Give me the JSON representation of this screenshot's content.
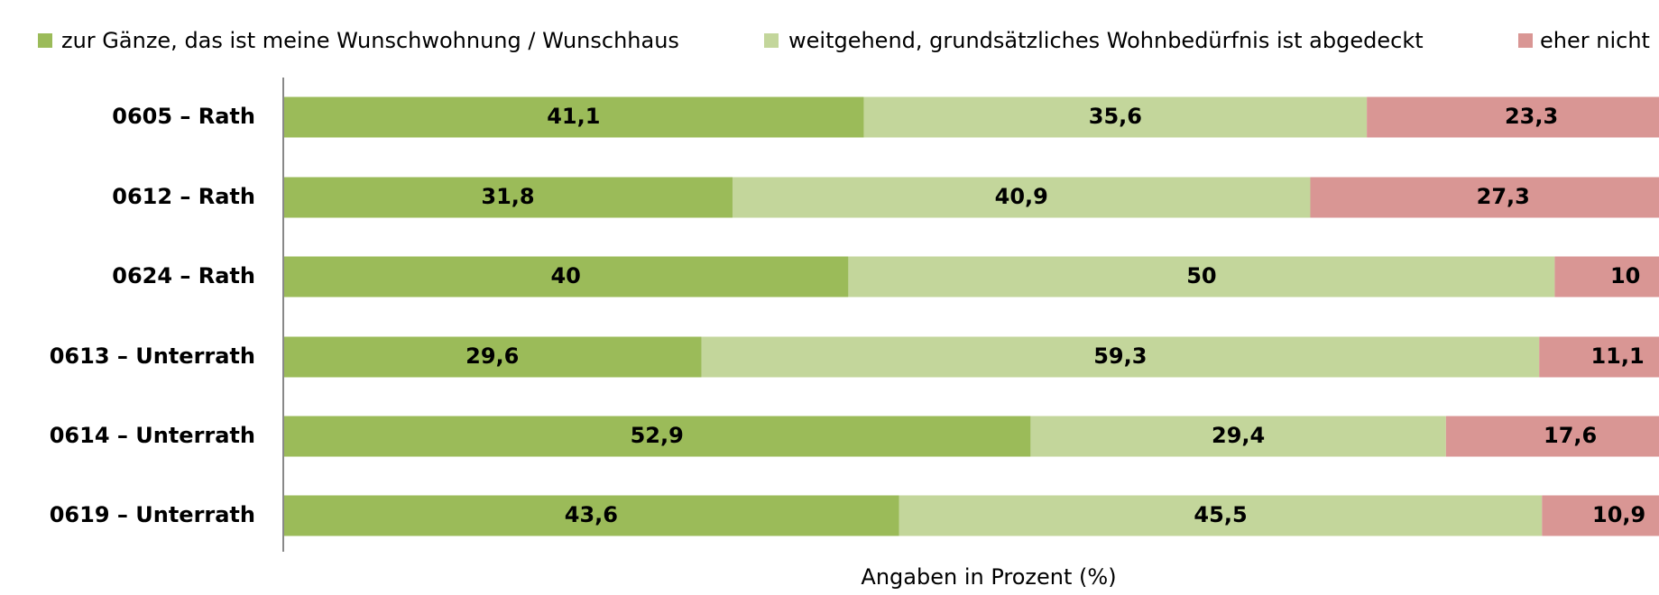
{
  "chart_data": {
    "type": "stacked-barh",
    "categories": [
      "0605 – Rath",
      "0612 –  Rath",
      "0624  –  Rath",
      "0613 – Unterrath",
      "0614  – Unterrath",
      "0619 – Unterrath"
    ],
    "series": [
      {
        "name": "zur Gänze, das ist meine Wunschwohnung / Wunschhaus",
        "color": "#9bbb59",
        "values": [
          41.1,
          31.8,
          40,
          29.6,
          52.9,
          43.6
        ],
        "value_labels": [
          "41,1",
          "31,8",
          "40",
          "29,6",
          "52,9",
          "43,6"
        ]
      },
      {
        "name": "weitgehend, grundsätzliches Wohnbedürfnis ist abgedeckt",
        "color": "#c3d69b",
        "values": [
          35.6,
          40.9,
          50,
          59.3,
          29.4,
          45.5
        ],
        "value_labels": [
          "35,6",
          "40,9",
          "50",
          "59,3",
          "29,4",
          "45,5"
        ]
      },
      {
        "name": "eher nicht",
        "color": "#d99694",
        "values": [
          23.3,
          27.3,
          10,
          11.1,
          17.6,
          10.9
        ],
        "value_labels": [
          "23,3",
          "27,3",
          "10",
          "11,1",
          "17,6",
          "10,9"
        ]
      }
    ],
    "xlabel": "Angaben in Prozent (%)",
    "xlim": [
      0,
      100
    ]
  }
}
